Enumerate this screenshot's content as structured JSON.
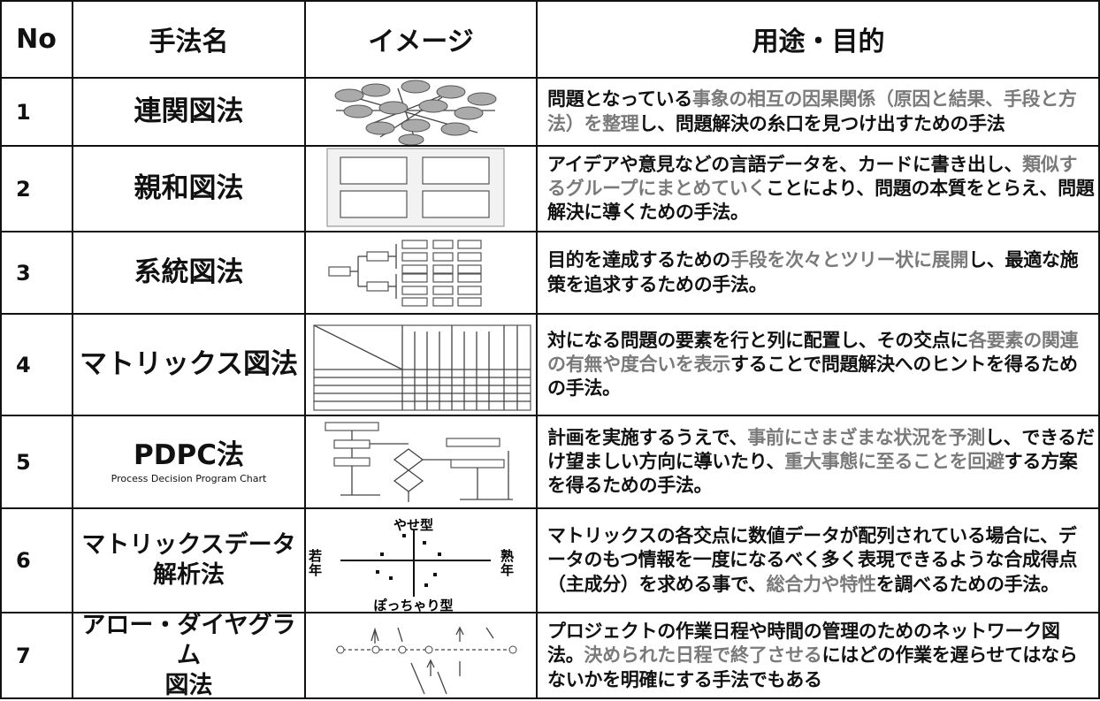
{
  "header": {
    "no": "No",
    "name": "手法名",
    "image": "イメージ",
    "purpose": "用途・目的"
  },
  "rows": [
    {
      "no": "1",
      "name": [
        "連関図法"
      ],
      "description": [
        {
          "text": "問題となっている",
          "color": "#111111"
        },
        {
          "text": "事象の相互の因果関係（原因と結果、手段と方法）を整理",
          "color": "#7a7a7a"
        },
        {
          "text": "し、問題解決の糸口を見つけ出すための手法",
          "color": "#111111"
        }
      ]
    },
    {
      "no": "2",
      "name": [
        "親和図法"
      ],
      "description": [
        {
          "text": "アイデアや意見などの言語データを、カードに書き出し、",
          "color": "#111111"
        },
        {
          "text": "類似するグループにまとめていく",
          "color": "#7a7a7a"
        },
        {
          "text": "ことにより、問題の本質をとらえ、問題解決に導くための手法。",
          "color": "#111111"
        }
      ]
    },
    {
      "no": "3",
      "name": [
        "系統図法"
      ],
      "description": [
        {
          "text": "目的を達成するための",
          "color": "#111111"
        },
        {
          "text": "手段を次々とツリー状に展開",
          "color": "#7a7a7a"
        },
        {
          "text": "し、最適な施策を追求するための手法。",
          "color": "#111111"
        }
      ]
    },
    {
      "no": "4",
      "name": [
        "マトリックス図法"
      ],
      "description": [
        {
          "text": "対になる問題の要素を行と列に配置し、その交点に",
          "color": "#111111"
        },
        {
          "text": "各要素の関連の有無や度合いを表示",
          "color": "#7a7a7a"
        },
        {
          "text": "することで問題解決へのヒントを得るための手法。",
          "color": "#111111"
        }
      ]
    },
    {
      "no": "5",
      "name": [
        "PDPC法"
      ],
      "subtitle": "Process Decision Program Chart",
      "description": [
        {
          "text": "計画を実施するうえで、",
          "color": "#111111"
        },
        {
          "text": "事前にさまざまな状況を予測",
          "color": "#7a7a7a"
        },
        {
          "text": "し、できるだけ望ましい方向に導いたり、",
          "color": "#111111"
        },
        {
          "text": "重大事態に至ることを回避",
          "color": "#7a7a7a"
        },
        {
          "text": "する方案を得るための手法。",
          "color": "#111111"
        }
      ]
    },
    {
      "no": "6",
      "name": [
        "マトリックスデータ",
        "解析法"
      ],
      "image_labels": {
        "top": "やせ型",
        "bottom": "ぽっちゃり型",
        "left": "若年",
        "right": "熟年"
      },
      "description": [
        {
          "text": "マトリックスの各交点に数値データが配列されている場合に、データのもつ情報を一度になるべく多く表現できるような合成得点（主成分）を求める事で、",
          "color": "#111111"
        },
        {
          "text": "総合力や特性",
          "color": "#7a7a7a"
        },
        {
          "text": "を調べるための手法。",
          "color": "#111111"
        }
      ]
    },
    {
      "no": "7",
      "name": [
        "アロー・ダイヤグラム",
        "図法"
      ],
      "description": [
        {
          "text": "プロジェクトの作業日程や時間の管理のためのネットワーク図法。",
          "color": "#111111"
        },
        {
          "text": "決められた日程で終了させる",
          "color": "#7a7a7a"
        },
        {
          "text": "にはどの作業を遅らせてはならないかを明確にする手法でもある",
          "color": "#111111"
        }
      ]
    }
  ]
}
